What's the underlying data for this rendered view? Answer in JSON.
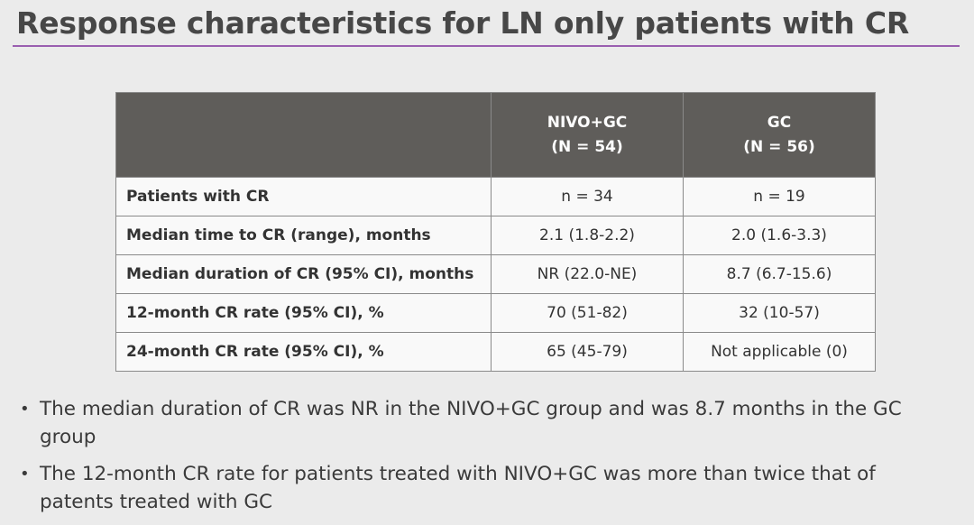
{
  "slide": {
    "title": "Response characteristics for LN only patients with CR"
  },
  "table": {
    "columns": [
      {
        "label": "",
        "sub": ""
      },
      {
        "label": "NIVO+GC",
        "sub": "(N = 54)"
      },
      {
        "label": "GC",
        "sub": "(N = 56)"
      }
    ],
    "rows": [
      {
        "label": "Patients with CR",
        "nivo_gc": "n = 34",
        "gc": "n = 19"
      },
      {
        "label": "Median time to CR (range), months",
        "nivo_gc": "2.1 (1.8-2.2)",
        "gc": "2.0 (1.6-3.3)"
      },
      {
        "label": "Median duration of CR (95% CI), months",
        "nivo_gc": "NR (22.0-NE)",
        "gc": "8.7 (6.7-15.6)"
      },
      {
        "label": "12-month CR rate (95% CI), %",
        "nivo_gc": "70 (51-82)",
        "gc": "32 (10-57)"
      },
      {
        "label": "24-month CR rate (95% CI), %",
        "nivo_gc": "65 (45-79)",
        "gc": "Not applicable (0)"
      }
    ]
  },
  "bullets": [
    "The median duration of CR was NR in the NIVO+GC group and was 8.7 months in the GC group",
    "The 12-month CR rate for patients treated with NIVO+GC was more than twice that of patents treated with GC"
  ],
  "colors": {
    "background": "#ebebeb",
    "title_rule": "#9a5fb0",
    "header_fill": "#5f5d5a",
    "cell_fill": "#f9f9f9"
  }
}
